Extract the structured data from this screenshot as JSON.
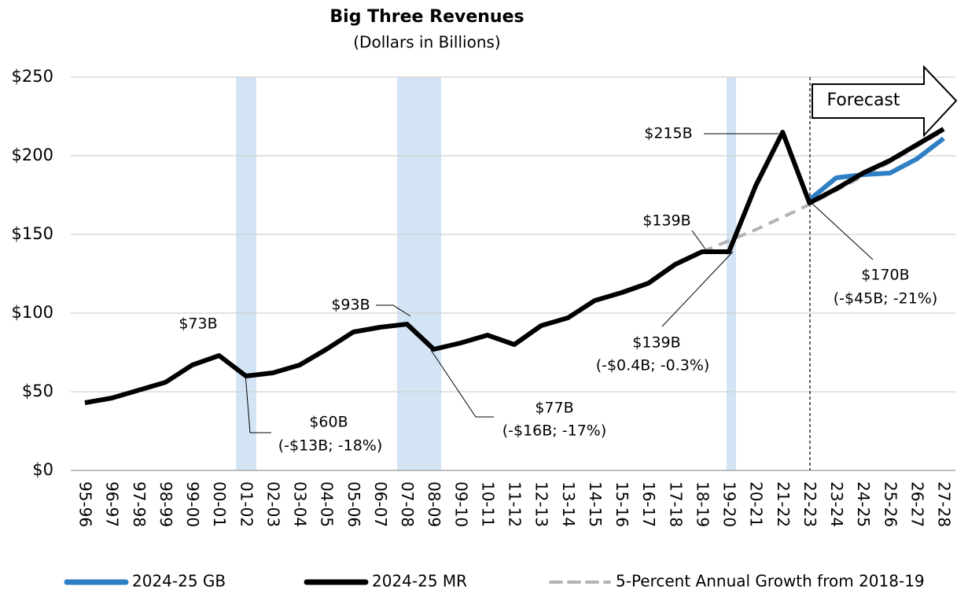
{
  "chart_data": {
    "type": "line",
    "title": "Big Three Revenues",
    "subtitle": "(Dollars in Billions)",
    "categories": [
      "95-96",
      "96-97",
      "97-98",
      "98-99",
      "99-00",
      "00-01",
      "01-02",
      "02-03",
      "03-04",
      "04-05",
      "05-06",
      "06-07",
      "07-08",
      "08-09",
      "09-10",
      "10-11",
      "11-12",
      "12-13",
      "13-14",
      "14-15",
      "15-16",
      "16-17",
      "17-18",
      "18-19",
      "19-20",
      "20-21",
      "21-22",
      "22-23",
      "23-24",
      "24-25",
      "25-26",
      "26-27",
      "27-28"
    ],
    "series": [
      {
        "name": "2024-25 GB",
        "color": "#2e7fc4",
        "dash": false,
        "values": [
          null,
          null,
          null,
          null,
          null,
          null,
          null,
          null,
          null,
          null,
          null,
          null,
          null,
          null,
          null,
          null,
          null,
          null,
          null,
          null,
          null,
          null,
          null,
          null,
          null,
          null,
          null,
          172,
          186,
          188,
          189,
          198,
          211
        ]
      },
      {
        "name": "2024-25 MR",
        "color": "#000000",
        "dash": false,
        "values": [
          43,
          46,
          51,
          56,
          67,
          73,
          60,
          62,
          67,
          77,
          88,
          91,
          93,
          77,
          81,
          86,
          80,
          92,
          97,
          108,
          113,
          119,
          131,
          139,
          139,
          181,
          215,
          170,
          179,
          189,
          197,
          207,
          217
        ]
      },
      {
        "name": "5-Percent Annual Growth from 2018-19",
        "color": "#b3b3b3",
        "dash": true,
        "values": [
          null,
          null,
          null,
          null,
          null,
          null,
          null,
          null,
          null,
          null,
          null,
          null,
          null,
          null,
          null,
          null,
          null,
          null,
          null,
          null,
          null,
          null,
          null,
          139,
          146,
          153,
          161,
          169,
          178,
          187,
          196,
          206,
          216
        ]
      }
    ],
    "ylim": [
      0,
      250
    ],
    "yticks": [
      {
        "value": 0,
        "label": "$0"
      },
      {
        "value": 50,
        "label": "$50"
      },
      {
        "value": 100,
        "label": "$100"
      },
      {
        "value": 150,
        "label": "$150"
      },
      {
        "value": 200,
        "label": "$200"
      },
      {
        "value": 250,
        "label": "$250"
      }
    ],
    "grid": true,
    "legend": "bottom",
    "annotations": {
      "forecast": "Forecast",
      "a73": "$73B",
      "a60": [
        "$60B",
        "(-$13B; -18%)"
      ],
      "a93": "$93B",
      "a77": [
        "$77B",
        "(-$16B; -17%)"
      ],
      "a139": "$139B",
      "a139b": [
        "$139B",
        "(-$0.4B; -0.3%)"
      ],
      "a215": "$215B",
      "a170": [
        "$170B",
        "(-$45B; -21%)"
      ]
    }
  }
}
